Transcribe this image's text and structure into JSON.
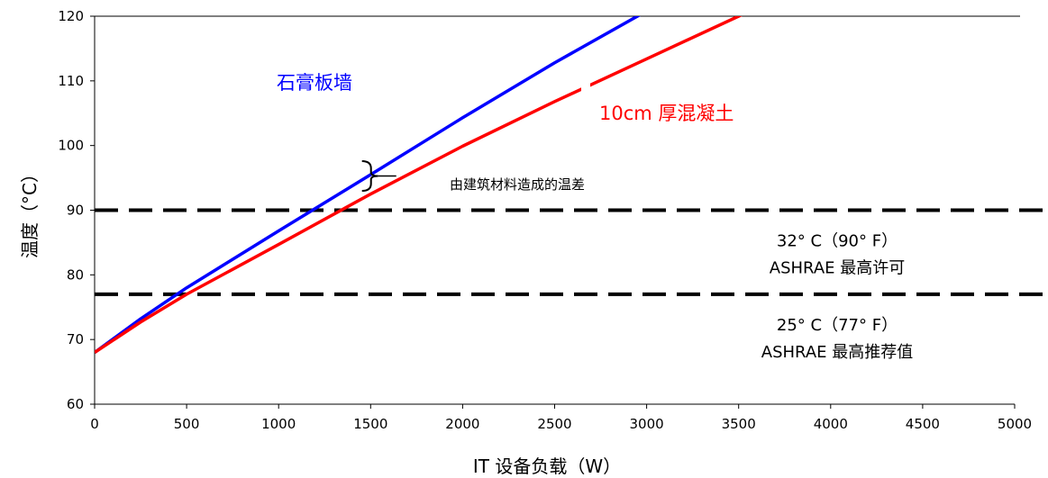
{
  "chart_data": {
    "type": "line",
    "xlabel": "IT 设备负载（W）",
    "ylabel": "温度（°C）",
    "xlim": [
      0,
      5000
    ],
    "ylim": [
      60,
      120
    ],
    "x_ticks": [
      0,
      500,
      1000,
      1500,
      2000,
      2500,
      3000,
      3500,
      4000,
      4500,
      5000
    ],
    "y_ticks": [
      60,
      70,
      80,
      90,
      100,
      110,
      120
    ],
    "grid": false,
    "series": [
      {
        "name": "石膏板墙",
        "color": "#0000ff",
        "x": [
          0,
          250,
          500,
          1000,
          1500,
          2000,
          2500,
          3000,
          3080
        ],
        "y": [
          68,
          73.2,
          78,
          86.8,
          95.5,
          104.3,
          112.8,
          120.8,
          122
        ]
      },
      {
        "name": "10cm 厚混凝土",
        "color": "#ff0000",
        "x": [
          0,
          250,
          500,
          1000,
          1500,
          2000,
          2500,
          3000,
          3500,
          3650
        ],
        "y": [
          68,
          72.7,
          77,
          84.7,
          92.5,
          99.9,
          106.8,
          113.4,
          120,
          122
        ]
      }
    ],
    "reference_lines": [
      {
        "y": 90,
        "style": "dashed",
        "color": "#000000",
        "label_line1": "32° C（90° F）",
        "label_line2": "ASHRAE 最高许可"
      },
      {
        "y": 77,
        "style": "dashed",
        "color": "#000000",
        "label_line1": "25° C（77° F）",
        "label_line2": "ASHRAE 最高推荐值"
      }
    ],
    "annotations": {
      "gap_label": "由建筑材料造成的温差",
      "gap_at_x": 1600
    }
  }
}
